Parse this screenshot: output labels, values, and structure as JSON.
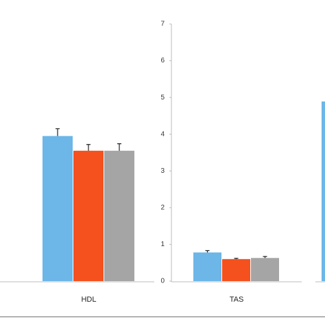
{
  "chart_data": [
    {
      "type": "bar",
      "categories": [
        "HDL"
      ],
      "ylim": [
        0,
        7
      ],
      "series": [
        {
          "color": "#6cb6e8",
          "values": [
            3.95
          ],
          "errors": [
            0.2
          ]
        },
        {
          "color": "#f4511e",
          "values": [
            3.55
          ],
          "errors": [
            0.17
          ]
        },
        {
          "color": "#a5a5a5",
          "values": [
            3.55
          ],
          "errors": [
            0.19
          ]
        }
      ]
    },
    {
      "type": "bar",
      "categories": [
        "TAS"
      ],
      "ylim": [
        0,
        7
      ],
      "yticks": [
        0,
        1,
        2,
        3,
        4,
        5,
        6,
        7
      ],
      "series": [
        {
          "color": "#6cb6e8",
          "values": [
            0.78
          ],
          "errors": [
            0.05
          ]
        },
        {
          "color": "#f4511e",
          "values": [
            0.6
          ],
          "errors": [
            0.02
          ]
        },
        {
          "color": "#a5a5a5",
          "values": [
            0.63
          ],
          "errors": [
            0.04
          ]
        }
      ]
    },
    {
      "type": "bar",
      "categories": [
        null
      ],
      "ylim": [
        0,
        7
      ],
      "series": [
        {
          "color": "#6cb6e8",
          "values": [
            4.89
          ]
        }
      ]
    }
  ]
}
